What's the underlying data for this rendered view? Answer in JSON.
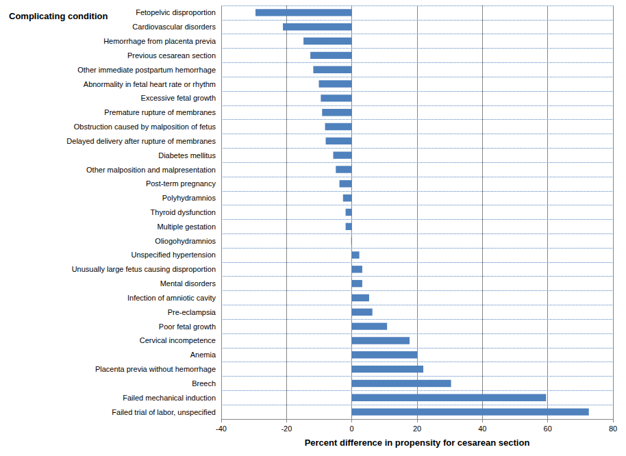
{
  "chart_data": {
    "type": "bar",
    "orientation": "horizontal",
    "x_label": "Percent difference in propensity for cesarean section",
    "y_label": "Complicating condition",
    "categories": [
      "Fetopelvic disproportion",
      "Cardiovascular disorders",
      "Hemorrhage from placenta previa",
      "Previous cesarean section",
      "Other immediate postpartum hemorrhage",
      "Abnormality in fetal heart rate or rhythm",
      "Excessive fetal growth",
      "Premature rupture of membranes",
      "Obstruction caused by malposition of fetus",
      "Delayed delivery after rupture of membranes",
      "Diabetes mellitus",
      "Other malposition and malpresentation",
      "Post-term pregnancy",
      "Polyhydramnios",
      "Thyroid dysfunction",
      "Multiple gestation",
      "Oliogohydramnios",
      "Unspecified hypertension",
      "Unusually large fetus causing disproportion",
      "Mental disorders",
      "Infection of amniotic cavity",
      "Pre-eclampsia",
      "Poor fetal growth",
      "Cervical incompetence",
      "Anemia",
      "Placenta previa without hemorrhage",
      "Breech",
      "Failed mechanical induction",
      "Failed trial of labor, unspecified"
    ],
    "values": [
      -29.5,
      -21.1,
      -14.8,
      -12.7,
      -11.8,
      -10.1,
      -9.5,
      -9.1,
      -8.2,
      -8.0,
      -5.7,
      -4.9,
      -3.8,
      -2.7,
      -1.9,
      -1.9,
      -0.2,
      2.3,
      3.2,
      3.2,
      5.3,
      6.3,
      10.8,
      17.7,
      20.0,
      21.9,
      30.4,
      59.5,
      72.6
    ],
    "color": "#4f81bd",
    "xlim": [
      -40,
      80
    ],
    "xticks": [
      -40,
      -20,
      0,
      20,
      40,
      60,
      80
    ],
    "grid": true
  }
}
